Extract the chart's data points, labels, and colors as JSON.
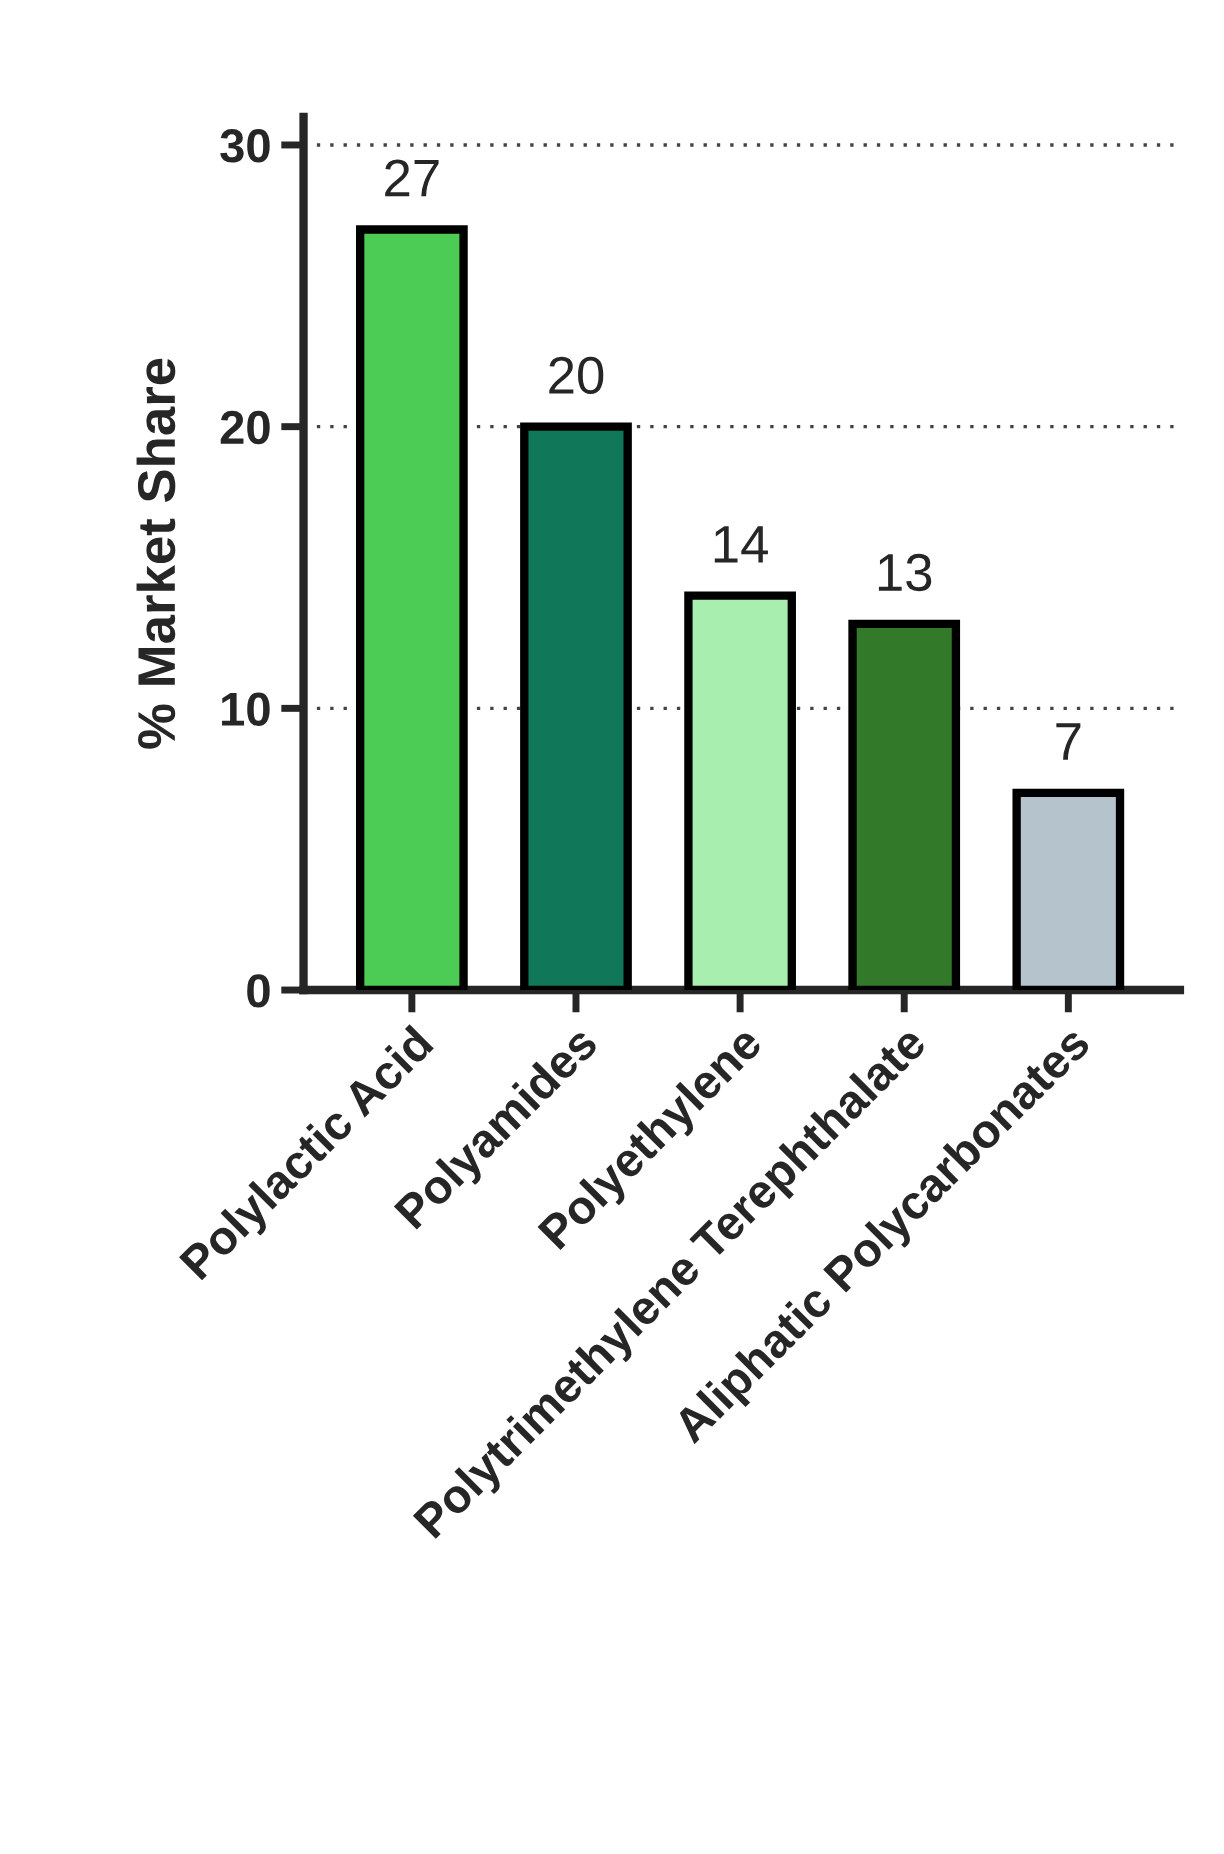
{
  "chart_data": {
    "type": "bar",
    "ylabel": "% Market Share",
    "categories": [
      "Polylactic Acid",
      "Polyamides",
      "Polyethylene",
      "Polytrimethylene Terephthalate",
      "Aliphatic Polycarbonates"
    ],
    "values": [
      27,
      20,
      14,
      13,
      7
    ],
    "colors": [
      "#4ccb55",
      "#107758",
      "#a8eeae",
      "#327a2a",
      "#b5c3cc"
    ],
    "ylim": [
      0,
      31
    ],
    "yticks": [
      0,
      10,
      20,
      30
    ],
    "grid": "y",
    "data_labels": true,
    "legend": false
  }
}
